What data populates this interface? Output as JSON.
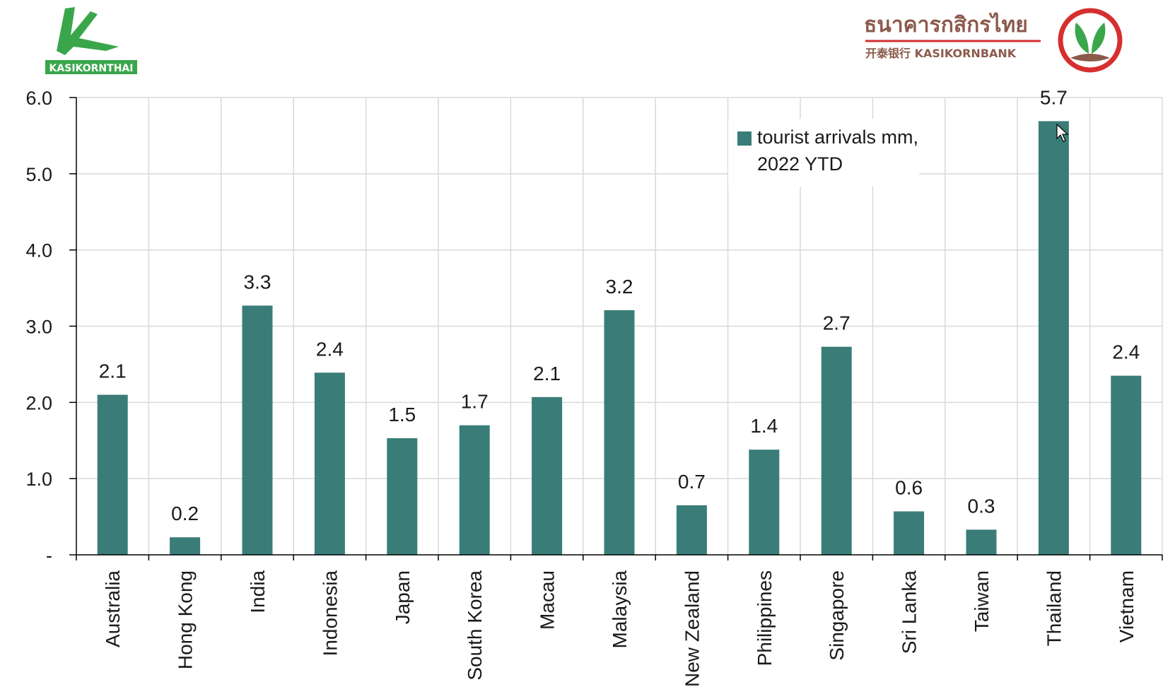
{
  "logos": {
    "left_logo_text": "KASIKORNTHAI",
    "right_logo_thai": "ธนาคารกสิกรไทย",
    "right_logo_sub": "开泰银行 KASIKORNBANK"
  },
  "colors": {
    "bar": "#3a7d78",
    "grid": "#d9d9d9",
    "axis": "#000000",
    "logo_green": "#3aa64b",
    "logo_red": "#d62f2f",
    "logo_brown": "#8c5a4b"
  },
  "chart_data": {
    "type": "bar",
    "title": "",
    "xlabel": "",
    "ylabel": "",
    "ylim": [
      0,
      6
    ],
    "yticks": [
      0,
      1,
      2,
      3,
      4,
      5,
      6
    ],
    "ytick_labels": [
      "-",
      "1.0",
      "2.0",
      "3.0",
      "4.0",
      "5.0",
      "6.0"
    ],
    "grid": true,
    "legend_position": "top-right",
    "categories": [
      "Australia",
      "Hong Kong",
      "India",
      "Indonesia",
      "Japan",
      "South Korea",
      "Macau",
      "Malaysia",
      "New Zealand",
      "Philippines",
      "Singapore",
      "Sri Lanka",
      "Taiwan",
      "Thailand",
      "Vietnam"
    ],
    "series": [
      {
        "name": "tourist arrivals mm, 2022 YTD",
        "legend_lines": [
          "tourist arrivals mm,",
          "2022 YTD"
        ],
        "values": [
          2.1,
          0.23,
          3.27,
          2.39,
          1.53,
          1.7,
          2.07,
          3.21,
          0.65,
          1.38,
          2.73,
          0.57,
          0.33,
          5.69,
          2.35
        ],
        "labels": [
          "2.1",
          "0.2",
          "3.3",
          "2.4",
          "1.5",
          "1.7",
          "2.1",
          "3.2",
          "0.7",
          "1.4",
          "2.7",
          "0.6",
          "0.3",
          "5.7",
          "2.4"
        ]
      }
    ]
  }
}
